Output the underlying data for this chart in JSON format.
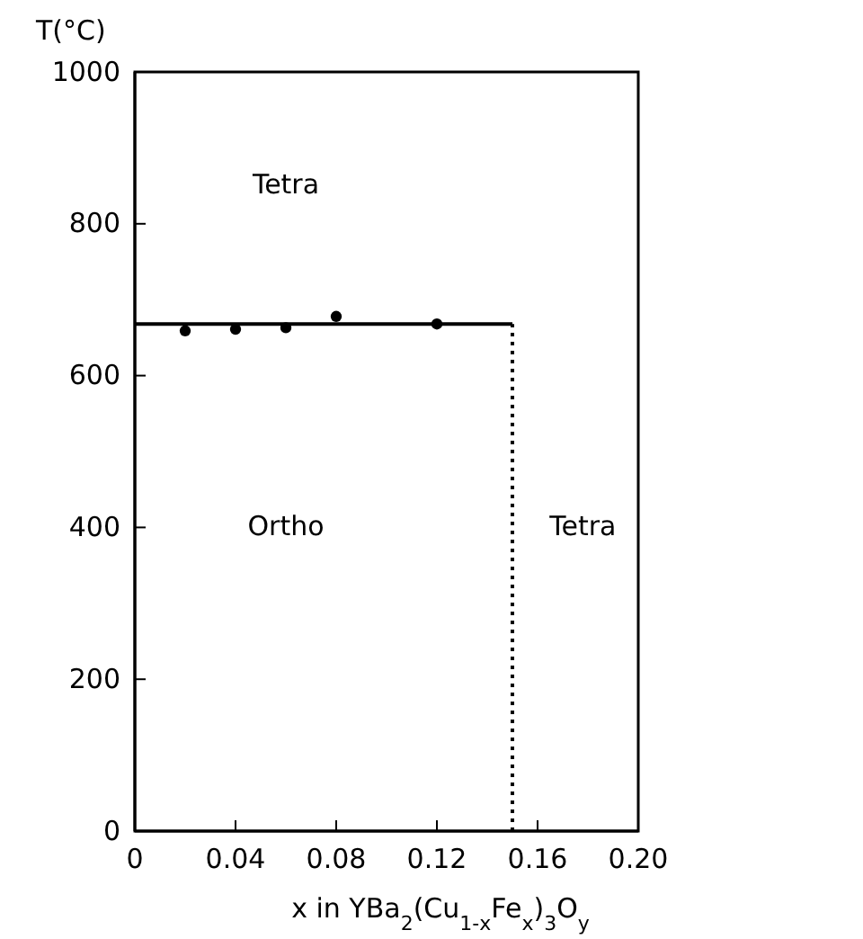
{
  "chart_data": {
    "type": "scatter",
    "xlabel": "x in YBa$_{2}$(Cu$_{1-x}$Fe$_{x}$)$_{3}$O$_{y}$",
    "ylabel": "T(°C)",
    "xlim": [
      0,
      0.2
    ],
    "ylim": [
      0,
      1000
    ],
    "xticks": [
      0,
      0.04,
      0.08,
      0.12,
      0.16,
      {
        "value": 0.2,
        "label": "0.20"
      }
    ],
    "yticks": [
      0,
      200,
      400,
      600,
      800,
      1000
    ],
    "series": [
      {
        "color": "#000000",
        "x": [
          0.02,
          0.04,
          0.06,
          0.08,
          0.12
        ],
        "values": [
          659,
          661,
          663,
          678,
          668
        ],
        "marker": "circle"
      },
      {
        "type": "line",
        "color": "#000000",
        "x": [
          0,
          0.15
        ],
        "values": [
          668,
          668
        ],
        "line_style": "solid"
      },
      {
        "type": "line",
        "color": "#000000",
        "x": [
          0.15,
          0.15
        ],
        "values": [
          0,
          668
        ],
        "line_style": "dotted"
      }
    ],
    "annotations": [
      "Tetra",
      "Ortho",
      "Tetra"
    ],
    "grid": false
  }
}
